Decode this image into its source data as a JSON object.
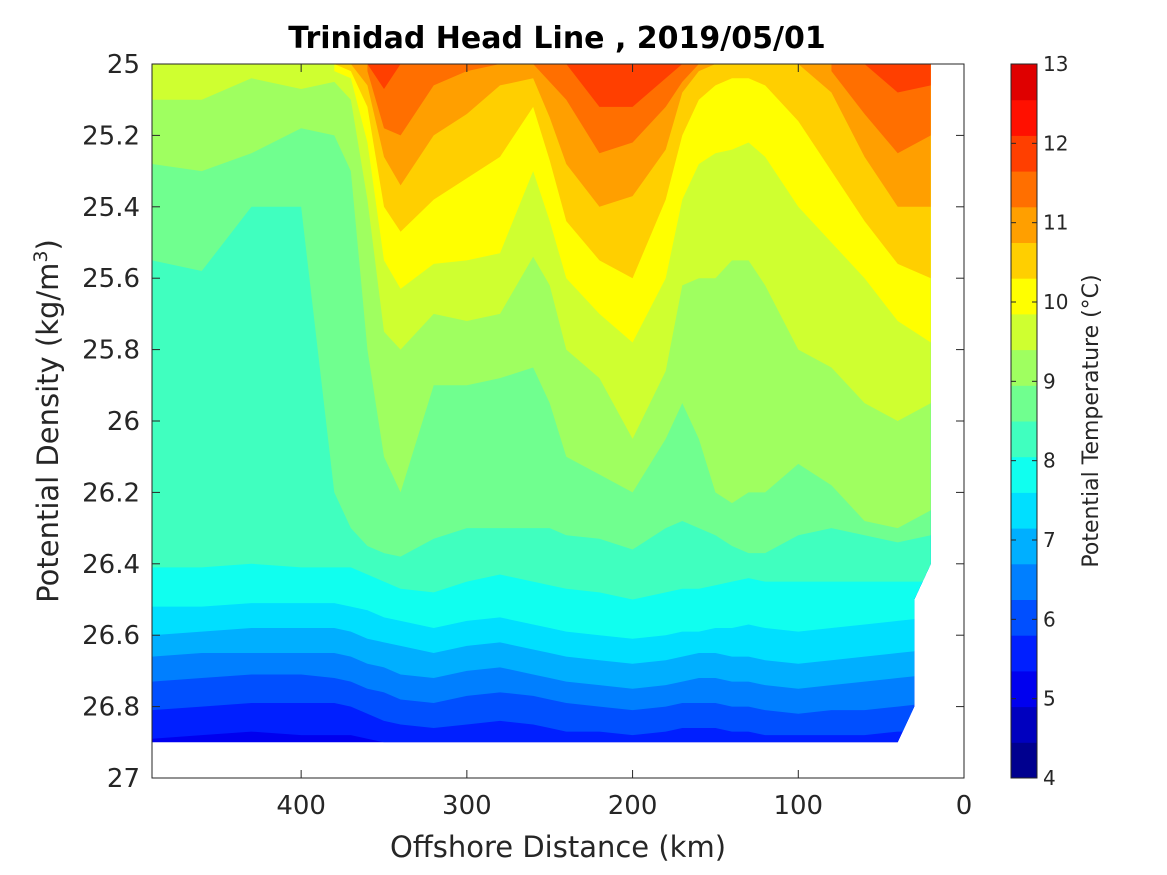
{
  "chart_data": {
    "type": "contour",
    "title": "Trinidad Head Line , 2019/05/01",
    "xlabel": "Offshore Distance (km)",
    "ylabel": "Potential Density (kg/m",
    "ylabel_sup": "3",
    "ylabel_close": ")",
    "xlim": [
      490,
      0
    ],
    "ylim": [
      25,
      27
    ],
    "x_ticks": [
      400,
      300,
      200,
      100,
      0
    ],
    "y_ticks": [
      25,
      25.2,
      25.4,
      25.6,
      25.8,
      26,
      26.2,
      26.4,
      26.6,
      26.8,
      27
    ],
    "y_reversed": true,
    "grid": false,
    "colorbar": {
      "label": "Potential Temperature (°C)",
      "range": [
        4,
        13
      ],
      "ticks": [
        4,
        5,
        6,
        7,
        8,
        9,
        10,
        11,
        12,
        13
      ],
      "level_step": 0.5,
      "colors": [
        "#00008f",
        "#0000bf",
        "#0000ef",
        "#001fff",
        "#004fff",
        "#007fff",
        "#00afff",
        "#00dfff",
        "#10ffef",
        "#40ffbf",
        "#70ff8f",
        "#9fff60",
        "#cfff30",
        "#ffff00",
        "#ffcf00",
        "#ff9f00",
        "#ff6f00",
        "#ff3f00",
        "#ff1000",
        "#df0000"
      ]
    },
    "x": [
      490,
      460,
      430,
      400,
      380,
      370,
      360,
      350,
      340,
      320,
      300,
      280,
      260,
      250,
      240,
      220,
      200,
      180,
      170,
      160,
      150,
      140,
      130,
      120,
      100,
      80,
      60,
      40,
      20
    ],
    "isotherms": [
      {
        "temp": 12.0,
        "y": [
          null,
          null,
          null,
          null,
          null,
          null,
          25.0,
          25.07,
          25.0,
          null,
          null,
          null,
          null,
          null,
          25.0,
          25.12,
          25.12,
          25.04,
          25.0,
          null,
          null,
          null,
          null,
          null,
          null,
          null,
          25.0,
          25.08,
          25.06
        ]
      },
      {
        "temp": 11.5,
        "y": [
          null,
          null,
          null,
          null,
          null,
          null,
          25.02,
          25.18,
          25.2,
          25.06,
          25.02,
          25.0,
          25.0,
          25.05,
          25.1,
          25.25,
          25.22,
          25.12,
          25.05,
          25.0,
          null,
          null,
          null,
          null,
          null,
          25.02,
          25.14,
          25.25,
          25.2
        ]
      },
      {
        "temp": 11.0,
        "y": [
          null,
          null,
          null,
          null,
          null,
          25.0,
          25.06,
          25.26,
          25.34,
          25.2,
          25.14,
          25.06,
          25.04,
          25.15,
          25.28,
          25.4,
          25.37,
          25.24,
          25.08,
          25.02,
          25.0,
          null,
          null,
          null,
          25.0,
          25.08,
          25.26,
          25.4,
          25.4
        ]
      },
      {
        "temp": 10.5,
        "y": [
          null,
          null,
          null,
          null,
          25.0,
          25.02,
          25.12,
          25.4,
          25.47,
          25.38,
          25.32,
          25.26,
          25.12,
          25.27,
          25.44,
          25.55,
          25.6,
          25.38,
          25.2,
          25.1,
          25.06,
          25.04,
          25.04,
          25.06,
          25.16,
          25.3,
          25.44,
          25.56,
          25.6
        ]
      },
      {
        "temp": 10.0,
        "y": [
          null,
          null,
          null,
          null,
          25.02,
          25.04,
          25.22,
          25.55,
          25.63,
          25.56,
          25.55,
          25.53,
          25.3,
          25.44,
          25.6,
          25.7,
          25.78,
          25.6,
          25.38,
          25.28,
          25.25,
          25.24,
          25.22,
          25.26,
          25.4,
          25.5,
          25.6,
          25.72,
          25.78
        ]
      },
      {
        "temp": 9.5,
        "y": [
          25.1,
          25.1,
          25.04,
          25.07,
          25.05,
          25.1,
          25.38,
          25.75,
          25.8,
          25.7,
          25.72,
          25.7,
          25.54,
          25.62,
          25.8,
          25.88,
          26.05,
          25.86,
          25.62,
          25.6,
          25.6,
          25.55,
          25.55,
          25.62,
          25.8,
          25.85,
          25.95,
          26.0,
          25.95
        ]
      },
      {
        "temp": 9.0,
        "y": [
          25.28,
          25.3,
          25.25,
          25.18,
          25.2,
          25.3,
          25.8,
          26.1,
          26.2,
          25.9,
          25.9,
          25.88,
          25.85,
          25.95,
          26.1,
          26.15,
          26.2,
          26.05,
          25.95,
          26.05,
          26.2,
          26.23,
          26.2,
          26.2,
          26.12,
          26.18,
          26.28,
          26.3,
          26.25
        ]
      },
      {
        "temp": 8.5,
        "y": [
          25.55,
          25.58,
          25.4,
          25.4,
          26.2,
          26.3,
          26.35,
          26.37,
          26.38,
          26.33,
          26.3,
          26.3,
          26.3,
          26.3,
          26.32,
          26.33,
          26.36,
          26.3,
          26.28,
          26.3,
          26.32,
          26.35,
          26.37,
          26.37,
          26.32,
          26.3,
          26.32,
          26.34,
          26.32
        ]
      },
      {
        "temp": 8.0,
        "y": [
          26.41,
          26.41,
          26.4,
          26.41,
          26.41,
          26.41,
          26.43,
          26.45,
          26.47,
          26.48,
          26.45,
          26.43,
          26.45,
          26.46,
          26.47,
          26.48,
          26.5,
          26.48,
          26.47,
          26.47,
          26.46,
          26.45,
          26.44,
          26.45,
          26.45,
          26.45,
          26.45,
          26.45,
          26.45
        ]
      },
      {
        "temp": 7.5,
        "y": [
          26.52,
          26.52,
          26.51,
          26.51,
          26.51,
          26.52,
          26.53,
          26.55,
          26.56,
          26.58,
          26.56,
          26.55,
          26.57,
          26.58,
          26.59,
          26.6,
          26.61,
          26.6,
          26.59,
          26.59,
          26.58,
          26.58,
          26.57,
          26.58,
          26.59,
          26.58,
          26.57,
          26.56,
          26.55
        ]
      },
      {
        "temp": 7.0,
        "y": [
          26.6,
          26.59,
          26.58,
          26.58,
          26.58,
          26.59,
          26.61,
          26.62,
          26.63,
          26.65,
          26.63,
          26.62,
          26.64,
          26.65,
          26.66,
          26.67,
          26.68,
          26.67,
          26.66,
          26.65,
          26.65,
          26.66,
          26.66,
          26.67,
          26.68,
          26.67,
          26.66,
          26.65,
          26.64
        ]
      },
      {
        "temp": 6.5,
        "y": [
          26.66,
          26.65,
          26.65,
          26.65,
          26.65,
          26.66,
          26.68,
          26.69,
          26.71,
          26.72,
          26.7,
          26.69,
          26.71,
          26.72,
          26.73,
          26.74,
          26.75,
          26.74,
          26.73,
          26.72,
          26.72,
          26.73,
          26.73,
          26.74,
          26.75,
          26.74,
          26.73,
          26.72,
          26.71
        ]
      },
      {
        "temp": 6.0,
        "y": [
          26.73,
          26.72,
          26.71,
          26.71,
          26.72,
          26.73,
          26.75,
          26.76,
          26.78,
          26.79,
          26.77,
          26.76,
          26.77,
          26.78,
          26.79,
          26.8,
          26.81,
          26.8,
          26.79,
          26.79,
          26.79,
          26.8,
          26.8,
          26.81,
          26.82,
          26.81,
          26.81,
          26.8,
          26.79
        ]
      },
      {
        "temp": 5.5,
        "y": [
          26.81,
          26.8,
          26.79,
          26.79,
          26.79,
          26.8,
          26.82,
          26.84,
          26.85,
          26.86,
          26.85,
          26.84,
          26.85,
          26.86,
          26.87,
          26.87,
          26.88,
          26.87,
          26.86,
          26.86,
          26.86,
          26.87,
          26.87,
          26.88,
          26.88,
          26.88,
          26.88,
          26.87,
          26.87
        ]
      },
      {
        "temp": 5.0,
        "y": [
          26.89,
          26.88,
          26.87,
          26.88,
          26.88,
          26.88,
          26.89,
          26.9,
          26.9,
          26.9,
          26.9,
          26.9,
          26.9,
          26.9,
          26.9,
          26.9,
          26.9,
          26.9,
          26.9,
          26.9,
          26.9,
          26.9,
          26.9,
          26.9,
          26.9,
          26.9,
          26.9,
          26.9,
          26.9
        ]
      }
    ],
    "data_bounds": {
      "x_min": 20,
      "bottom_density": 26.9,
      "right_edge": [
        {
          "x": 20,
          "y": 25.0
        },
        {
          "x": 20,
          "y": 26.4
        },
        {
          "x": 30,
          "y": 26.5
        },
        {
          "x": 30,
          "y": 26.8
        },
        {
          "x": 40,
          "y": 26.9
        }
      ]
    }
  }
}
